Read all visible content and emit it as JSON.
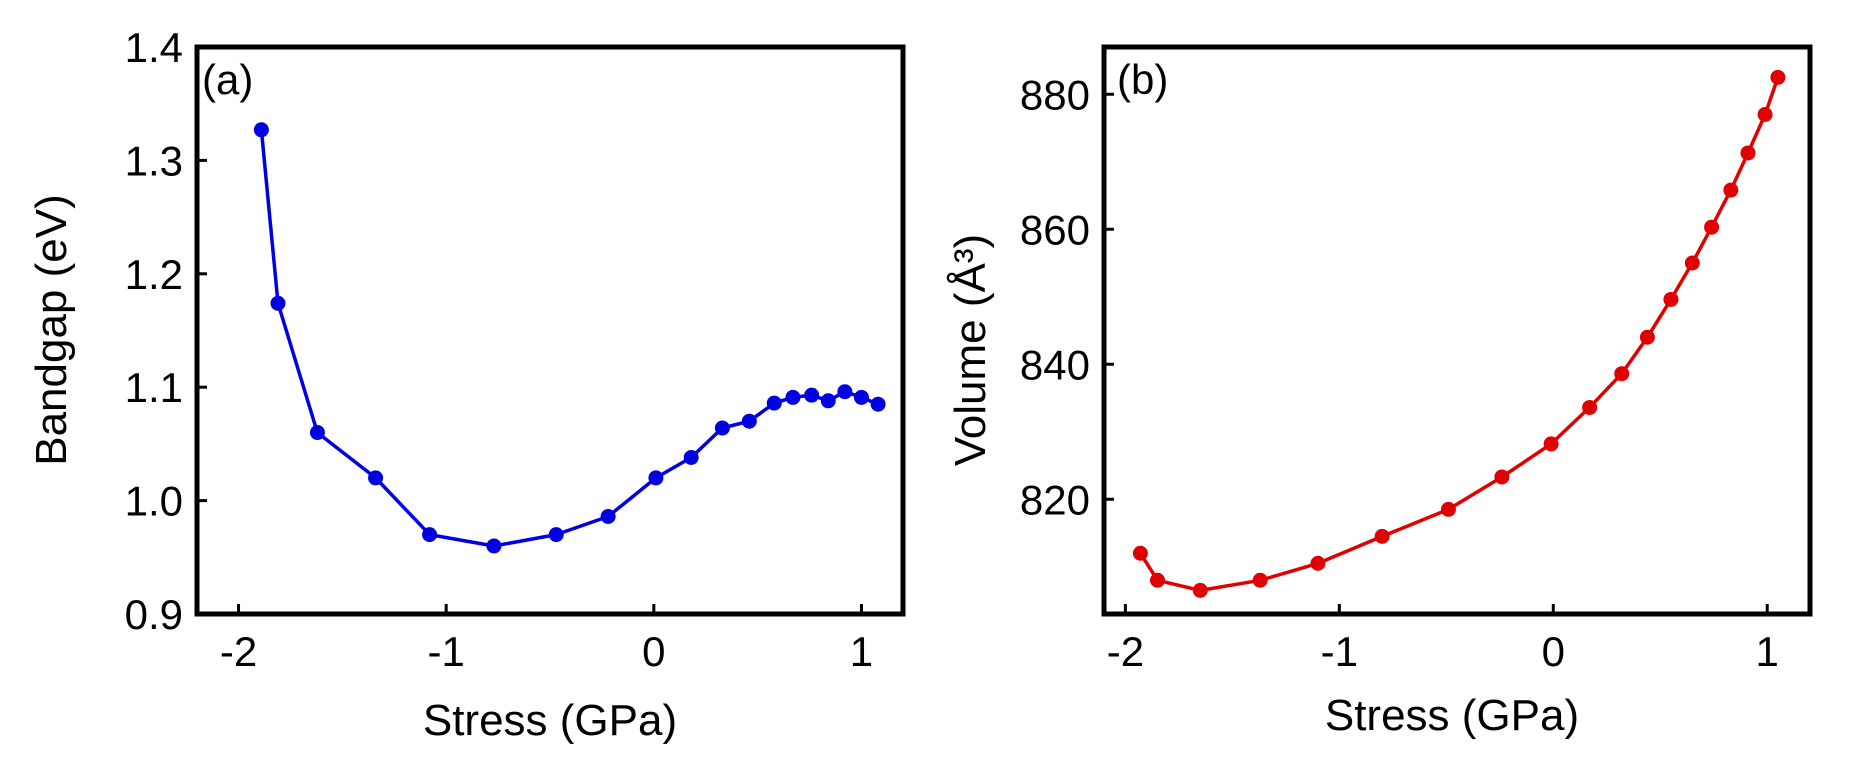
{
  "chart_data": [
    {
      "type": "line",
      "panel_label": "(a)",
      "xlabel": "Stress (GPa)",
      "ylabel": "Bandgap (eV)",
      "xlim": [
        -2.2,
        1.2
      ],
      "ylim": [
        0.9,
        1.4
      ],
      "xticks": [
        -2,
        -1,
        0,
        1
      ],
      "xtick_labels": [
        "-2",
        "-1",
        "0",
        "1"
      ],
      "yticks": [
        0.9,
        1.0,
        1.1,
        1.2,
        1.3,
        1.4
      ],
      "ytick_labels": [
        "0.9",
        "1.0",
        "1.1",
        "1.2",
        "1.3",
        "1.4"
      ],
      "color": "#0000e0",
      "series": [
        {
          "name": "Bandgap",
          "x": [
            -1.89,
            -1.81,
            -1.62,
            -1.34,
            -1.08,
            -0.77,
            -0.47,
            -0.22,
            0.01,
            0.18,
            0.33,
            0.46,
            0.58,
            0.67,
            0.76,
            0.84,
            0.92,
            1.0,
            1.08
          ],
          "y": [
            1.327,
            1.174,
            1.06,
            1.02,
            0.97,
            0.96,
            0.97,
            0.986,
            1.02,
            1.038,
            1.064,
            1.07,
            1.086,
            1.091,
            1.093,
            1.088,
            1.096,
            1.091,
            1.085
          ]
        }
      ]
    },
    {
      "type": "line",
      "panel_label": "(b)",
      "xlabel": "Stress (GPa)",
      "ylabel": "Volume (Å³)",
      "xlim": [
        -2.1,
        1.2
      ],
      "ylim": [
        803,
        887
      ],
      "xticks": [
        -2,
        -1,
        0,
        1
      ],
      "xtick_labels": [
        "-2",
        "-1",
        "0",
        "1"
      ],
      "yticks": [
        820,
        840,
        860,
        880
      ],
      "ytick_labels": [
        "820",
        "840",
        "860",
        "880"
      ],
      "color": "#e00000",
      "series": [
        {
          "name": "Volume",
          "x": [
            -1.93,
            -1.85,
            -1.65,
            -1.37,
            -1.1,
            -0.8,
            -0.49,
            -0.24,
            -0.01,
            0.17,
            0.32,
            0.44,
            0.55,
            0.65,
            0.74,
            0.83,
            0.91,
            0.99,
            1.05
          ],
          "y": [
            812.0,
            808.0,
            806.5,
            808.0,
            810.5,
            814.5,
            818.5,
            823.3,
            828.2,
            833.6,
            838.6,
            844.0,
            849.6,
            855.0,
            860.3,
            865.8,
            871.3,
            877.0,
            882.5
          ]
        }
      ]
    }
  ]
}
